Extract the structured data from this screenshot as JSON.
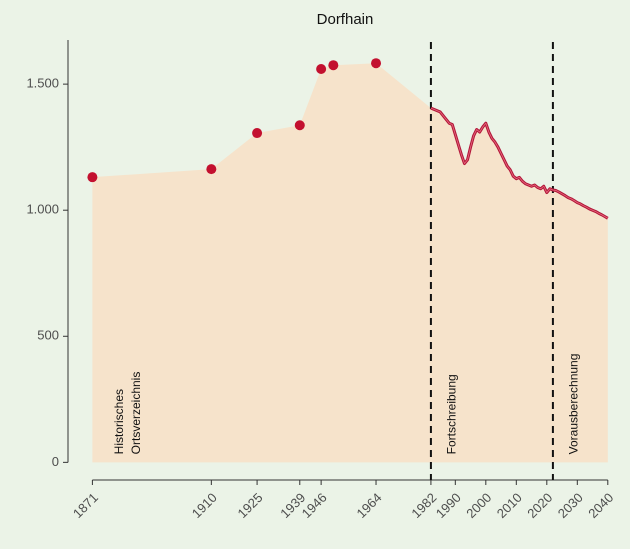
{
  "chart_data": {
    "type": "line",
    "title": "Dorfhain",
    "xlim": [
      1863,
      2044
    ],
    "ylim": [
      -70,
      1675
    ],
    "xticks": [
      1871,
      1910,
      1925,
      1939,
      1946,
      1964,
      1982,
      1990,
      2000,
      2010,
      2020,
      2030,
      2040
    ],
    "yticks": [
      0,
      500,
      {
        "value": 1000,
        "label": "1.000"
      },
      {
        "value": 1500,
        "label": "1.500"
      }
    ],
    "area_color": "#f6e3cb",
    "series": [
      {
        "style": "points",
        "color": "#c3102f",
        "x": [
          1871,
          1910,
          1925,
          1939,
          1946,
          1950,
          1964
        ],
        "values": [
          1131,
          1163,
          1306,
          1337,
          1560,
          1575,
          1583
        ]
      },
      {
        "style": "line",
        "color": "#b3183a",
        "x": [
          1982,
          1985,
          1987,
          1988,
          1989,
          1990,
          1991,
          1992,
          1993,
          1994,
          1995,
          1996,
          1997,
          1998,
          1999,
          2000,
          2001,
          2002,
          2003,
          2004,
          2005,
          2006,
          2007,
          2008,
          2009,
          2010,
          2011,
          2012,
          2013,
          2014,
          2015,
          2016,
          2017,
          2018,
          2019,
          2020,
          2021,
          2022,
          2023,
          2024,
          2025,
          2026,
          2027,
          2028,
          2029,
          2030,
          2031,
          2032,
          2033,
          2034,
          2035,
          2036,
          2037,
          2038,
          2039,
          2040
        ],
        "values": [
          1405,
          1390,
          1360,
          1345,
          1340,
          1300,
          1260,
          1220,
          1185,
          1200,
          1250,
          1295,
          1320,
          1310,
          1330,
          1345,
          1310,
          1285,
          1270,
          1250,
          1225,
          1200,
          1175,
          1160,
          1135,
          1125,
          1130,
          1115,
          1105,
          1100,
          1095,
          1100,
          1090,
          1085,
          1095,
          1070,
          1085,
          1080,
          1078,
          1072,
          1065,
          1058,
          1050,
          1045,
          1038,
          1030,
          1025,
          1018,
          1012,
          1005,
          1000,
          995,
          988,
          982,
          975,
          968
        ]
      }
    ],
    "vlines": [
      1982,
      2022
    ],
    "annotations": [
      {
        "x": 1880,
        "lines": [
          "Historisches",
          "Ortsverzeichnis"
        ]
      },
      {
        "x": 1989,
        "lines": [
          "Fortschreibung"
        ]
      },
      {
        "x": 2029,
        "lines": [
          "Vorausberechnung"
        ]
      }
    ]
  }
}
